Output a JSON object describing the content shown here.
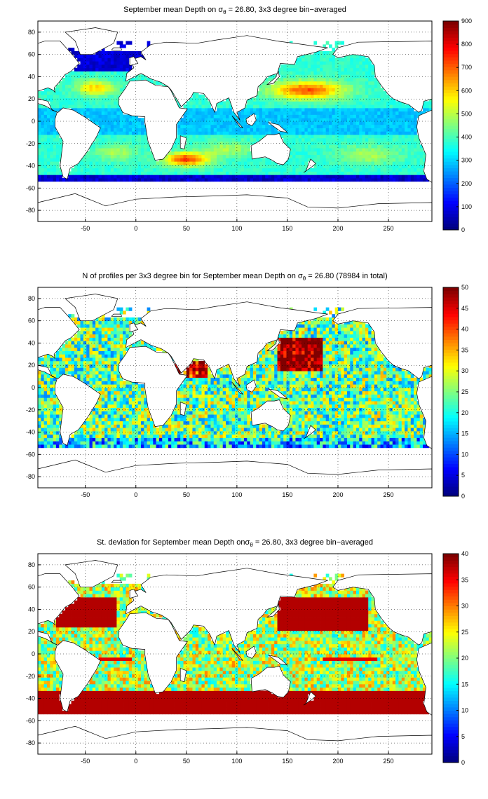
{
  "panels": [
    {
      "title_parts": [
        "September mean Depth on ",
        "σ",
        "θ",
        " = 26.80, 3x3 degree bin−averaged"
      ],
      "colorbar": {
        "min": 0,
        "max": 900,
        "ticks": [
          "0",
          "100",
          "200",
          "300",
          "400",
          "500",
          "600",
          "700",
          "800",
          "900"
        ]
      }
    },
    {
      "title_parts": [
        "N of profiles per 3x3 degree bin for September mean Depth on ",
        "σ",
        "θ",
        " = 26.80 (78984 in total)"
      ],
      "colorbar": {
        "min": 0,
        "max": 50,
        "ticks": [
          "0",
          "5",
          "10",
          "15",
          "20",
          "25",
          "30",
          "35",
          "40",
          "45",
          "50"
        ]
      }
    },
    {
      "title_parts": [
        "St. deviation for September mean Depth on",
        "σ",
        "θ",
        " = 26.80, 3x3 degree bin−averaged"
      ],
      "colorbar": {
        "min": 0,
        "max": 40,
        "ticks": [
          "0",
          "5",
          "10",
          "15",
          "20",
          "25",
          "30",
          "35",
          "40"
        ]
      }
    }
  ],
  "axes": {
    "x_ticks": [
      "-50",
      "0",
      "50",
      "100",
      "150",
      "200",
      "250"
    ],
    "y_ticks": [
      "80",
      "60",
      "40",
      "20",
      "0",
      "-20",
      "-40",
      "-60",
      "-80"
    ],
    "xlim": [
      -97,
      293
    ],
    "ylim": [
      -90,
      90
    ]
  },
  "colormap": "jet"
}
